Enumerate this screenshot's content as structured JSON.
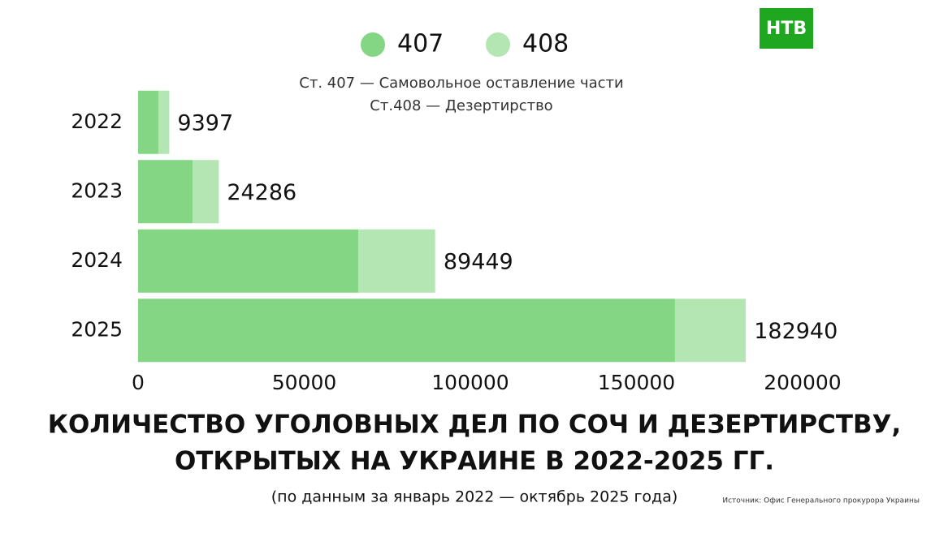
{
  "chart_data": {
    "type": "bar",
    "orientation": "horizontal",
    "stacked": true,
    "title": [
      "КОЛИЧЕСТВО УГОЛОВНЫХ ДЕЛ ПО СОЧ И ДЕЗЕРТИРСТВУ,",
      "ОТКРЫТЫХ НА УКРАИНЕ В 2022-2025 ГГ."
    ],
    "subtitle": "(по данным за январь 2022 — октябрь 2025 года)",
    "notes": [
      "Ст. 407 — Самовольное оставление части",
      "Ст.408 — Дезертирство"
    ],
    "source": "Источник: Офис Генерального прокурора Украины",
    "logo": "НТВ",
    "categories": [
      "2022",
      "2023",
      "2024",
      "2025"
    ],
    "series": [
      {
        "name": "407",
        "color": "#84d584",
        "values": [
          6100,
          16400,
          66300,
          161600
        ]
      },
      {
        "name": "408",
        "color": "#b3e6b3",
        "values": [
          3300,
          7900,
          23100,
          21300
        ]
      }
    ],
    "totals": [
      9397,
      24286,
      89449,
      182940
    ],
    "xlim": [
      0,
      200000
    ],
    "xticks": [
      0,
      50000,
      100000,
      150000,
      200000
    ],
    "grid": false
  }
}
